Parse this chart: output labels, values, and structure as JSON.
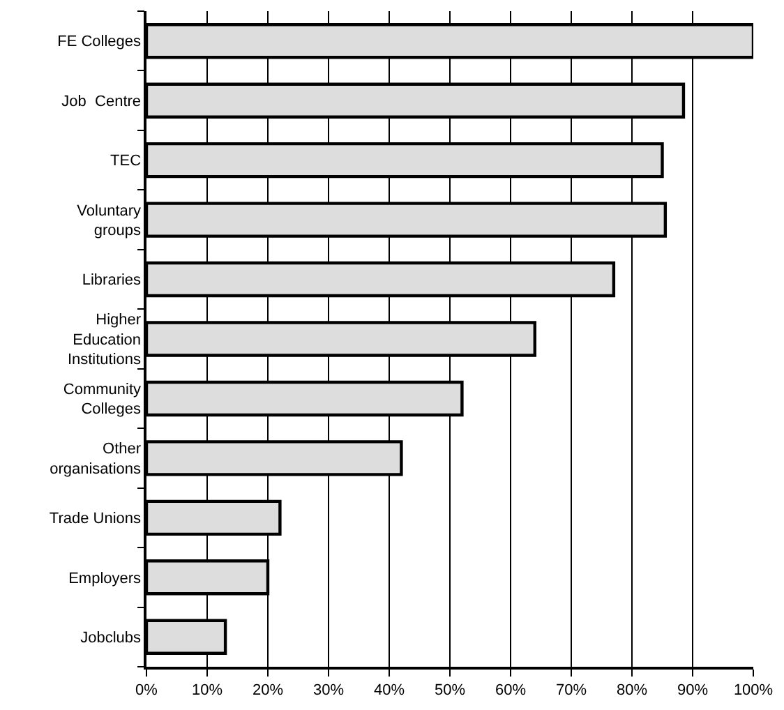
{
  "chart_data": {
    "type": "bar",
    "orientation": "horizontal",
    "categories": [
      "FE Colleges",
      "Job  Centre",
      "TEC",
      "Voluntary\ngroups",
      "Libraries",
      "Higher\nEducation\nInstitutions",
      "Community\nColleges",
      "Other\norganisations",
      "Trade Unions",
      "Employers",
      "Jobclubs"
    ],
    "values": [
      100,
      88.5,
      85,
      85.5,
      77,
      64,
      52,
      42,
      22,
      20,
      13
    ],
    "color": "#dddddd",
    "xlim": [
      0,
      100
    ],
    "xticks": [
      {
        "value": 0,
        "label": "0%"
      },
      {
        "value": 10,
        "label": "10%"
      },
      {
        "value": 20,
        "label": "20%"
      },
      {
        "value": 30,
        "label": "30%"
      },
      {
        "value": 40,
        "label": "40%"
      },
      {
        "value": 50,
        "label": "50%"
      },
      {
        "value": 60,
        "label": "60%"
      },
      {
        "value": 70,
        "label": "70%"
      },
      {
        "value": 80,
        "label": "80%"
      },
      {
        "value": 90,
        "label": "90%"
      },
      {
        "value": 100,
        "label": "100%"
      }
    ],
    "grid": "x"
  }
}
